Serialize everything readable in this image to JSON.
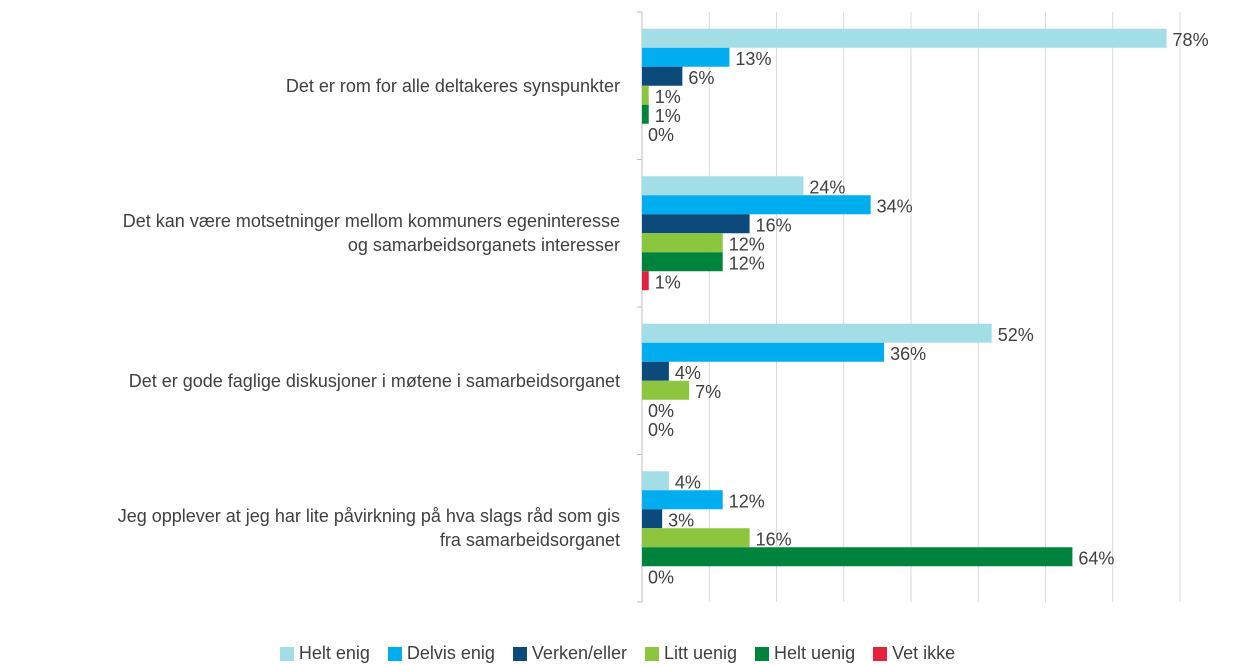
{
  "chart_data": {
    "type": "bar",
    "orientation": "horizontal",
    "categories": [
      "Det er rom for alle deltakeres synspunkter",
      "Det kan være motsetninger mellom kommuners egeninteresse\nog samarbeidsorganets interesser",
      "Det er gode faglige diskusjoner i møtene i samarbeidsorganet",
      "Jeg opplever at jeg har lite påvirkning på hva slags råd som gis\nfra samarbeidsorganet"
    ],
    "series": [
      {
        "name": "Helt enig",
        "color": "#a3dde6",
        "values": [
          78,
          24,
          52,
          4
        ],
        "value_labels": [
          "78%",
          "24%",
          "52%",
          "4%"
        ]
      },
      {
        "name": "Delvis enig",
        "color": "#00aeef",
        "values": [
          13,
          34,
          36,
          12
        ],
        "value_labels": [
          "13%",
          "34%",
          "36%",
          "12%"
        ]
      },
      {
        "name": "Verken/eller",
        "color": "#0d4a7c",
        "values": [
          6,
          16,
          4,
          3
        ],
        "value_labels": [
          "6%",
          "16%",
          "4%",
          "3%"
        ]
      },
      {
        "name": "Litt uenig",
        "color": "#8cc63f",
        "values": [
          1,
          12,
          7,
          16
        ],
        "value_labels": [
          "1%",
          "12%",
          "7%",
          "16%"
        ]
      },
      {
        "name": "Helt uenig",
        "color": "#00843d",
        "values": [
          1,
          12,
          0,
          64
        ],
        "value_labels": [
          "1%",
          "12%",
          "0%",
          "64%"
        ]
      },
      {
        "name": "Vet ikke",
        "color": "#e4203c",
        "values": [
          0,
          1,
          0,
          0
        ],
        "value_labels": [
          "0%",
          "1%",
          "0%",
          "0%"
        ]
      }
    ],
    "xlim": [
      0,
      80
    ],
    "xticks": [
      0,
      10,
      20,
      30,
      40,
      50,
      60,
      70,
      80
    ],
    "grid": true,
    "legend": "bottom"
  }
}
